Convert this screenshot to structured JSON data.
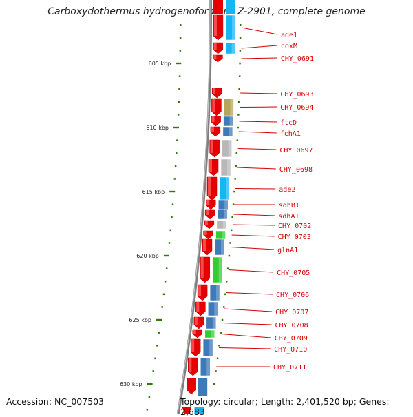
{
  "title": "Carboxydothermus hydrogenoformans Z-2901, complete genome",
  "footer": {
    "accession": "Accession: NC_007503",
    "topology": "Topology: circular; Length: 2,401,520 bp; Genes: 2,683"
  },
  "colors": {
    "backbone": "#7f7f7f",
    "tick": "#2e7d0a",
    "cds": "#e60000",
    "label": "#d40000",
    "steelblue": "#3f7ab8",
    "cyan": "#14b7f2",
    "olive": "#b5a65a",
    "grey": "#b8b8b8",
    "green": "#33cc33"
  },
  "scale": {
    "kbp_per_tick_label": 5,
    "unit": "kbp"
  },
  "kbp_labels": [
    "605 kbp",
    "610 kbp",
    "615 kbp",
    "620 kbp",
    "625 kbp",
    "630 kbp"
  ],
  "genes": [
    {
      "label": "ade1",
      "cog": "cyan"
    },
    {
      "label": "coxM",
      "cog": "cyan"
    },
    {
      "label": "CHY_0691",
      "cog": "none"
    },
    {
      "label": "CHY_0693",
      "cog": "none"
    },
    {
      "label": "CHY_0694",
      "cog": "olive"
    },
    {
      "label": "ftcD",
      "cog": "steelblue"
    },
    {
      "label": "fchA1",
      "cog": "steelblue"
    },
    {
      "label": "CHY_0697",
      "cog": "grey"
    },
    {
      "label": "CHY_0698",
      "cog": "grey"
    },
    {
      "label": "ade2",
      "cog": "cyan"
    },
    {
      "label": "sdhB1",
      "cog": "steelblue"
    },
    {
      "label": "sdhA1",
      "cog": "steelblue"
    },
    {
      "label": "CHY_0702",
      "cog": "grey"
    },
    {
      "label": "CHY_0703",
      "cog": "green"
    },
    {
      "label": "glnA1",
      "cog": "steelblue"
    },
    {
      "label": "CHY_0705",
      "cog": "green"
    },
    {
      "label": "CHY_0706",
      "cog": "steelblue"
    },
    {
      "label": "CHY_0707",
      "cog": "steelblue"
    },
    {
      "label": "CHY_0708",
      "cog": "steelblue"
    },
    {
      "label": "CHY_0709",
      "cog": "green"
    },
    {
      "label": "CHY_0710",
      "cog": "steelblue"
    },
    {
      "label": "CHY_0711",
      "cog": "steelblue"
    }
  ]
}
